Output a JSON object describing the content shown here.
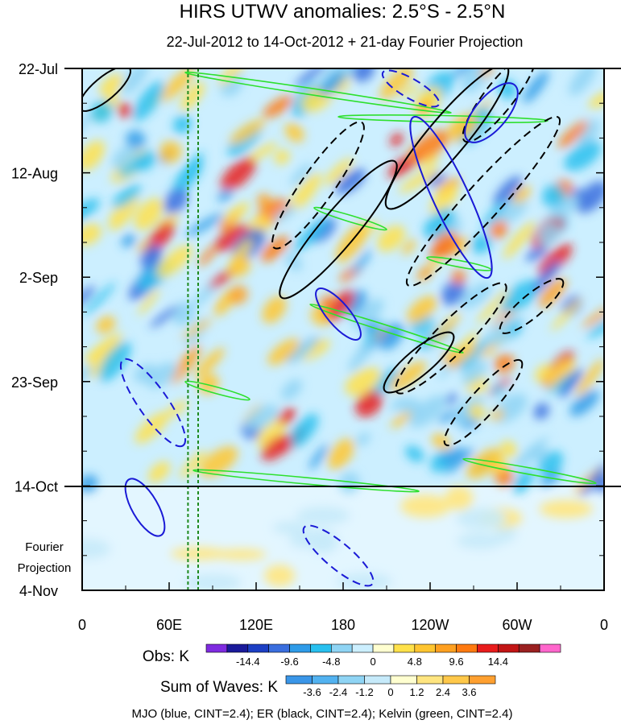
{
  "chart_data": {
    "type": "heatmap",
    "title": "HIRS UTWV anomalies: 2.5°S - 2.5°N",
    "subtitle": "22-Jul-2012 to 14-Oct-2012 + 21-day Fourier Projection",
    "x_ticks": [
      "0",
      "60E",
      "120E",
      "180",
      "120W",
      "60W",
      "0"
    ],
    "x_tick_degrees": [
      0,
      60,
      120,
      180,
      240,
      300,
      360
    ],
    "y_ticks": [
      "22-Jul",
      "12-Aug",
      "2-Sep",
      "23-Sep",
      "14-Oct",
      "4-Nov"
    ],
    "y_tick_days": [
      0,
      21,
      42,
      63,
      84,
      105
    ],
    "projection_label": [
      "Fourier",
      "Projection"
    ],
    "obs_colorbar": {
      "label": "Obs: K",
      "tick_labels": [
        "-14.4",
        "-9.6",
        "-4.8",
        "0",
        "4.8",
        "9.6",
        "14.4"
      ],
      "colors": [
        "#7f2be0",
        "#1a1a9a",
        "#1c3fc4",
        "#3a6ede",
        "#2e9be8",
        "#28c0ef",
        "#8fd4f4",
        "#ccefff",
        "#ffffd0",
        "#ffe14a",
        "#ffc530",
        "#ffa020",
        "#ff7a10",
        "#e81c1c",
        "#c21515",
        "#9a2020",
        "#ff66cc"
      ]
    },
    "waves_colorbar": {
      "label": "Sum of Waves: K",
      "tick_labels": [
        "-3.6",
        "-2.4",
        "-1.2",
        "0",
        "1.2",
        "2.4",
        "3.6"
      ],
      "colors": [
        "#3a96e8",
        "#52b2f0",
        "#8fd4f4",
        "#c6eafa",
        "#ffffd0",
        "#ffe580",
        "#ffc84a",
        "#ffa030"
      ]
    },
    "contour_legend": "MJO (blue, CINT=2.4); ER (black, CINT=2.4); Kelvin (green, CINT=2.4)",
    "series": [
      {
        "name": "MJO",
        "color": "#1a1ad6",
        "cint": 2.4
      },
      {
        "name": "ER",
        "color": "#000000",
        "cint": 2.4
      },
      {
        "name": "Kelvin",
        "color": "#2ee02e",
        "cint": 2.4
      }
    ],
    "reference_longitudes_deg": [
      73,
      80
    ],
    "obs_end_day": 84,
    "total_days": 105
  }
}
